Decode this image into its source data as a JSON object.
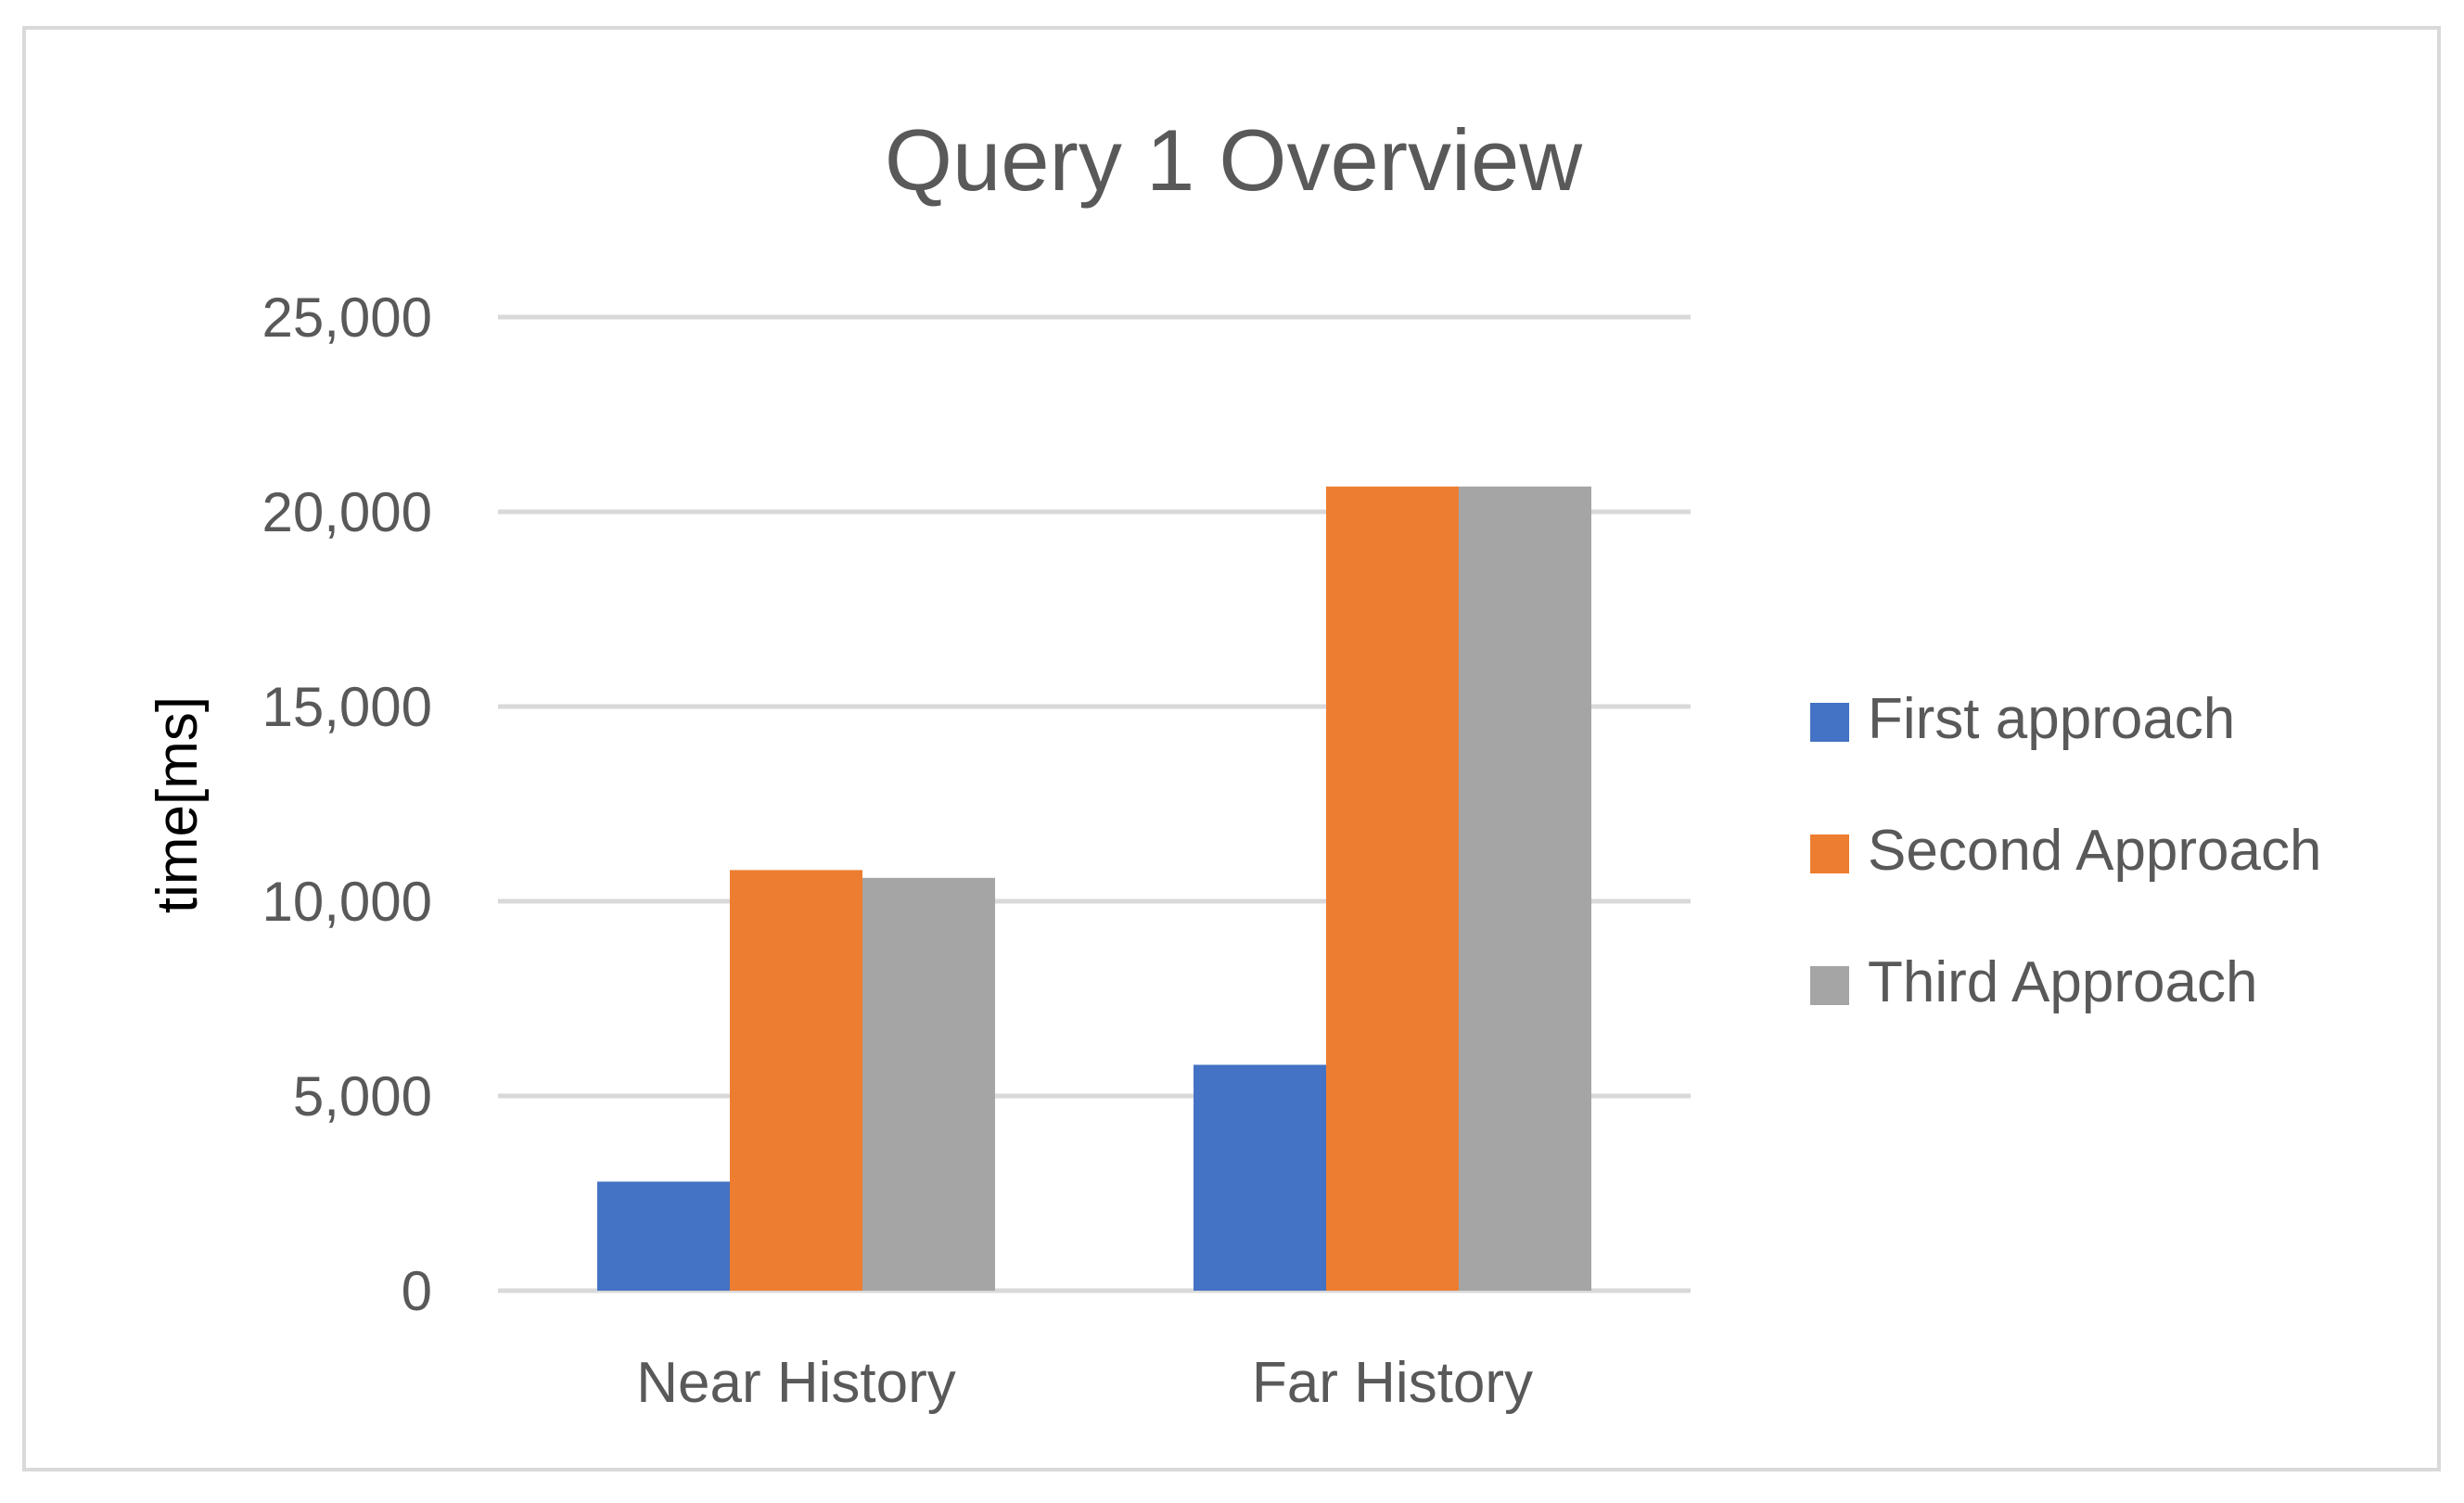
{
  "chart_data": {
    "type": "bar",
    "title": "Query 1 Overview",
    "xlabel": "",
    "ylabel": "time[ms]",
    "ylim": [
      0,
      25000
    ],
    "yticks": [
      0,
      5000,
      10000,
      15000,
      20000,
      25000
    ],
    "ytick_labels": [
      "0",
      "5,000",
      "10,000",
      "15,000",
      "20,000",
      "25,000"
    ],
    "categories": [
      "Near History",
      "Far History"
    ],
    "series": [
      {
        "name": "First approach",
        "color": "#4472C4",
        "values": [
          2800,
          5800
        ]
      },
      {
        "name": "Second Approach",
        "color": "#ED7D31",
        "values": [
          10800,
          20650
        ]
      },
      {
        "name": "Third Approach",
        "color": "#A5A5A5",
        "values": [
          10600,
          20650
        ]
      }
    ],
    "grid": true,
    "gridline_color": "#d9d9d9",
    "legend_position": "right"
  }
}
